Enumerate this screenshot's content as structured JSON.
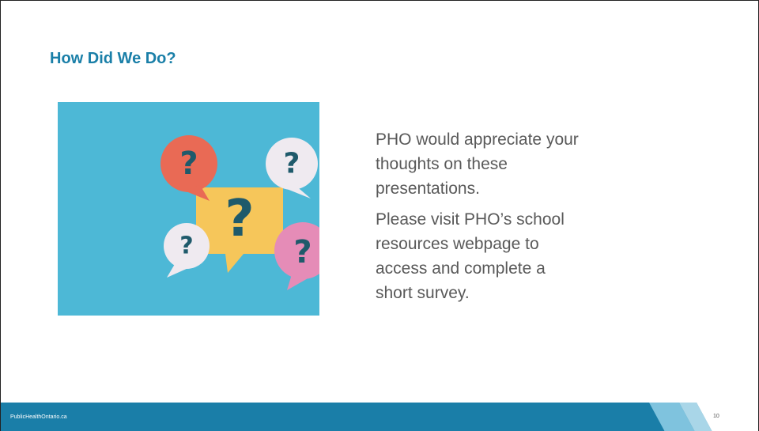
{
  "header": {
    "title": "How Did We Do?"
  },
  "illustration": {
    "marks": [
      "?",
      "?",
      "?",
      "?",
      "?"
    ]
  },
  "body": {
    "paragraphs": [
      "PHO would appreciate your thoughts on these presentations.",
      "Please visit PHO’s school resources webpage to access and complete a short survey."
    ]
  },
  "footer": {
    "site": "PublicHealthOntario.ca",
    "page": "10"
  }
}
